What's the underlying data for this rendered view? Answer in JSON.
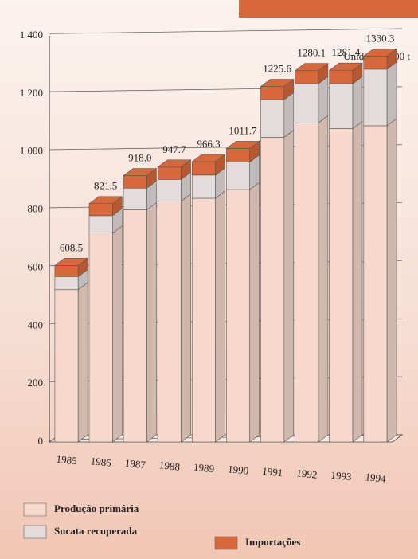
{
  "chart_data": {
    "type": "bar",
    "stacked": true,
    "annotation": "Unidade: 1000 t",
    "categories": [
      "1985",
      "1986",
      "1987",
      "1988",
      "1989",
      "1990",
      "1991",
      "1992",
      "1993",
      "1994"
    ],
    "series": [
      {
        "name": "Produção primária",
        "color": "#f6d9cc",
        "values": [
          525,
          720,
          800,
          830,
          840,
          870,
          1050,
          1100,
          1080,
          1090
        ]
      },
      {
        "name": "Sucata recuperada",
        "color": "#e3dcdc",
        "values": [
          45,
          60,
          75,
          75,
          80,
          95,
          130,
          135,
          155,
          195
        ]
      },
      {
        "name": "Importações",
        "color": "#d8683a",
        "values": [
          38.5,
          41.5,
          43,
          42.7,
          46.3,
          46.7,
          45.6,
          45.1,
          46.4,
          45.3
        ]
      }
    ],
    "totals": [
      608.5,
      821.5,
      918,
      947.7,
      966.3,
      1011.7,
      1225.6,
      1280.1,
      1281.4,
      1330.3
    ],
    "total_labels": [
      "608.5",
      "821.5",
      "918.0",
      "947.7",
      "966.3",
      "1011.7",
      "1225.6",
      "1280.1",
      "1281.4",
      "1330.3"
    ],
    "ylim": [
      0,
      1400
    ],
    "yticks": [
      {
        "value": 0,
        "label": "0"
      },
      {
        "value": 200,
        "label": "200"
      },
      {
        "value": 400,
        "label": "400"
      },
      {
        "value": 600,
        "label": "600"
      },
      {
        "value": 800,
        "label": "800"
      },
      {
        "value": 1000,
        "label": "1 000"
      },
      {
        "value": 1200,
        "label": "1 200"
      },
      {
        "value": 1400,
        "label": "1 400"
      }
    ],
    "grid": true
  }
}
